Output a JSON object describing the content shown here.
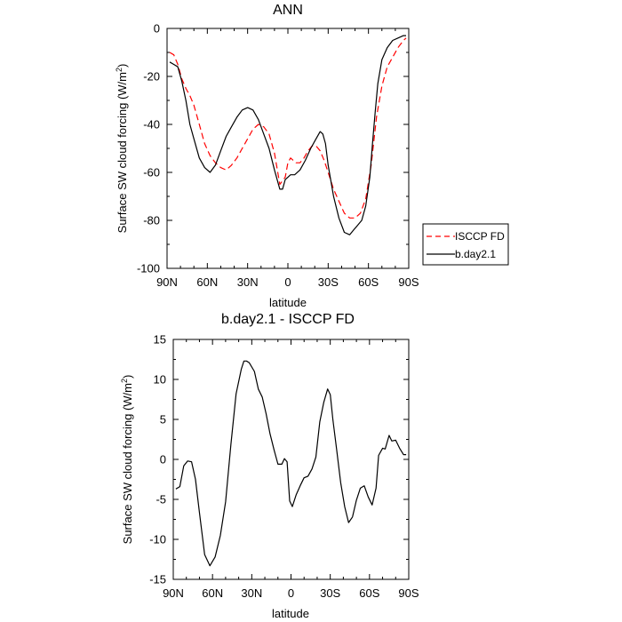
{
  "chart_data": [
    {
      "type": "line",
      "title": "ANN",
      "xlabel": "latitude",
      "ylabel_main": "Surface SW cloud forcing (W/m",
      "ylabel_sup": "2",
      "ylabel_close": ")",
      "xlim": [
        90,
        -90
      ],
      "ylim": [
        -100,
        0
      ],
      "xticks": [
        90,
        60,
        30,
        0,
        -30,
        -60,
        -90
      ],
      "xtick_labels": [
        "90N",
        "60N",
        "30N",
        "0",
        "30S",
        "60S",
        "90S"
      ],
      "yticks": [
        0,
        -20,
        -40,
        -60,
        -80,
        -100
      ],
      "ytick_labels": [
        "0",
        "-20",
        "-40",
        "-60",
        "-80",
        "-100"
      ],
      "legend_position": "right",
      "series": [
        {
          "name": "ISCCP FD",
          "color": "#ff0000",
          "dash": true,
          "x": [
            88,
            85,
            82,
            79,
            76,
            73,
            70,
            66,
            62,
            58,
            54,
            50,
            46,
            42,
            38,
            34,
            30,
            26,
            22,
            18,
            14,
            10,
            6,
            2,
            0,
            -2,
            -4,
            -6,
            -9,
            -12,
            -15,
            -18,
            -21,
            -24,
            -27,
            -30,
            -34,
            -38,
            -42,
            -46,
            -50,
            -54,
            -58,
            -62,
            -66,
            -70,
            -74,
            -78,
            -82,
            -86,
            -88
          ],
          "y": [
            -10,
            -11,
            -15,
            -21,
            -25,
            -28,
            -32,
            -40,
            -48,
            -53,
            -56,
            -58,
            -59,
            -57,
            -54,
            -50,
            -46,
            -42,
            -40,
            -41,
            -44,
            -52,
            -65,
            -62,
            -56,
            -54,
            -55,
            -56,
            -56,
            -54,
            -51,
            -49,
            -49,
            -51,
            -55,
            -60,
            -67,
            -72,
            -77,
            -79,
            -79,
            -77,
            -71,
            -57,
            -37,
            -24,
            -16,
            -12,
            -8,
            -5,
            -4
          ]
        },
        {
          "name": "b.day2.1",
          "color": "#000000",
          "dash": false,
          "x": [
            88,
            85,
            82,
            79,
            76,
            73,
            70,
            66,
            62,
            58,
            54,
            50,
            46,
            42,
            38,
            34,
            30,
            26,
            22,
            18,
            14,
            10,
            6,
            4,
            2,
            0,
            -2,
            -5,
            -9,
            -13,
            -17,
            -21,
            -24,
            -26,
            -28,
            -30,
            -34,
            -38,
            -42,
            -46,
            -49,
            -52,
            -55,
            -58,
            -61,
            -63,
            -65,
            -67,
            -70,
            -74,
            -78,
            -82,
            -86,
            -88
          ],
          "y": [
            -14,
            -15,
            -16,
            -22,
            -30,
            -40,
            -46,
            -54,
            -58,
            -60,
            -57,
            -51,
            -45,
            -41,
            -37,
            -34,
            -33,
            -34,
            -38,
            -44,
            -50,
            -59,
            -67,
            -67,
            -63,
            -62,
            -61,
            -61,
            -59,
            -55,
            -50,
            -46,
            -43,
            -44,
            -48,
            -57,
            -70,
            -79,
            -85,
            -86,
            -84,
            -82,
            -80,
            -74,
            -62,
            -48,
            -35,
            -23,
            -13,
            -8,
            -5,
            -4,
            -3,
            -3
          ]
        }
      ]
    },
    {
      "type": "line",
      "title": "b.day2.1 - ISCCP FD",
      "xlabel": "latitude",
      "ylabel_main": "Surface SW cloud forcing (W/m",
      "ylabel_sup": "2",
      "ylabel_close": ")",
      "xlim": [
        90,
        -90
      ],
      "ylim": [
        -15,
        15
      ],
      "xticks": [
        90,
        60,
        30,
        0,
        -30,
        -60,
        -90
      ],
      "xtick_labels": [
        "90N",
        "60N",
        "30N",
        "0",
        "30S",
        "60S",
        "90S"
      ],
      "yticks": [
        15,
        10,
        5,
        0,
        -5,
        -10,
        -15
      ],
      "ytick_labels": [
        "15",
        "10",
        "5",
        "0",
        "-5",
        "-10",
        "-15"
      ],
      "series": [
        {
          "color": "#000000",
          "dash": false,
          "x": [
            88,
            85,
            82,
            79,
            76,
            73,
            70,
            66,
            62,
            58,
            54,
            50,
            46,
            42,
            38,
            36,
            34,
            32,
            28,
            25,
            22,
            19,
            16,
            13,
            10,
            7,
            5,
            3,
            1,
            -1,
            -4,
            -7,
            -10,
            -13,
            -16,
            -19,
            -22,
            -25,
            -28,
            -30,
            -32,
            -35,
            -38,
            -41,
            -44,
            -47,
            -50,
            -53,
            -56,
            -59,
            -62,
            -65,
            -67,
            -70,
            -72,
            -75,
            -77,
            -80,
            -83,
            -86,
            -88
          ],
          "y": [
            -3.7,
            -3.4,
            -0.8,
            -0.2,
            -0.3,
            -2.5,
            -6.6,
            -11.9,
            -13.3,
            -12.2,
            -9.5,
            -5.3,
            1.8,
            8.2,
            11.3,
            12.3,
            12.3,
            12.1,
            11.0,
            8.8,
            7.8,
            5.7,
            3.2,
            1.2,
            -0.6,
            -0.6,
            0.1,
            -0.3,
            -5.2,
            -5.9,
            -4.4,
            -3.3,
            -2.3,
            -2.1,
            -1.2,
            0.3,
            4.7,
            7.1,
            8.8,
            8.1,
            5.0,
            1.1,
            -2.9,
            -5.9,
            -7.9,
            -7.2,
            -5.1,
            -3.6,
            -3.3,
            -4.7,
            -5.7,
            -3.6,
            0.5,
            1.4,
            1.3,
            3.0,
            2.3,
            2.4,
            1.4,
            0.6,
            0.6
          ]
        }
      ]
    }
  ]
}
